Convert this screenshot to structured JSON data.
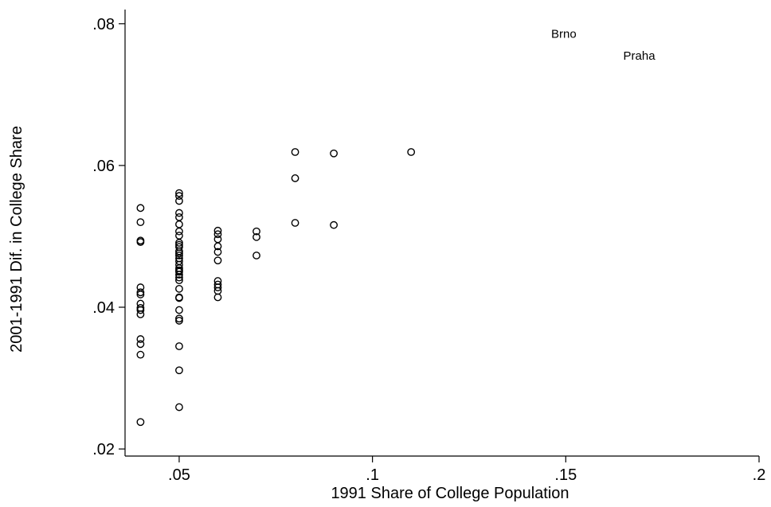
{
  "chart_data": {
    "type": "scatter",
    "title": "",
    "xlabel": "1991 Share of College Population",
    "ylabel": "2001-1991 Dif. in College Share",
    "xlim": [
      0.036,
      0.2
    ],
    "ylim": [
      0.019,
      0.082
    ],
    "xticks": [
      {
        "value": 0.05,
        "label": ".05"
      },
      {
        "value": 0.1,
        "label": ".1"
      },
      {
        "value": 0.15,
        "label": ".15"
      },
      {
        "value": 0.2,
        "label": ".2"
      }
    ],
    "yticks": [
      {
        "value": 0.02,
        "label": ".02"
      },
      {
        "value": 0.04,
        "label": ".04"
      },
      {
        "value": 0.06,
        "label": ".06"
      },
      {
        "value": 0.08,
        "label": ".08"
      }
    ],
    "grid": false,
    "legend": "none",
    "marker": "hollow-circle",
    "series": [
      {
        "x": [
          0.04,
          0.04,
          0.04,
          0.04,
          0.04,
          0.04,
          0.04,
          0.04,
          0.04,
          0.04,
          0.04,
          0.04,
          0.04,
          0.04,
          0.04,
          0.05,
          0.05,
          0.05,
          0.05,
          0.05,
          0.05,
          0.05,
          0.05,
          0.05,
          0.05,
          0.05,
          0.05,
          0.05,
          0.05,
          0.05,
          0.05,
          0.05,
          0.05,
          0.05,
          0.05,
          0.05,
          0.05,
          0.05,
          0.05,
          0.05,
          0.05,
          0.05,
          0.05,
          0.05,
          0.05,
          0.05,
          0.05,
          0.06,
          0.06,
          0.06,
          0.06,
          0.06,
          0.06,
          0.06,
          0.06,
          0.06,
          0.06,
          0.06,
          0.07,
          0.07,
          0.07,
          0.08,
          0.08,
          0.08,
          0.09,
          0.09,
          0.11
        ],
        "y": [
          0.054,
          0.052,
          0.0494,
          0.0492,
          0.0428,
          0.0421,
          0.0405,
          0.0399,
          0.0396,
          0.039,
          0.0355,
          0.0348,
          0.0333,
          0.0238,
          0.0418,
          0.0561,
          0.0557,
          0.055,
          0.0533,
          0.0527,
          0.0517,
          0.0507,
          0.0501,
          0.0491,
          0.0485,
          0.0479,
          0.0473,
          0.0469,
          0.0465,
          0.046,
          0.0455,
          0.045,
          0.0446,
          0.0442,
          0.0438,
          0.0426,
          0.0414,
          0.0396,
          0.0384,
          0.0381,
          0.0345,
          0.0311,
          0.0259,
          0.0488,
          0.0476,
          0.0452,
          0.0413,
          0.0508,
          0.0503,
          0.0496,
          0.0486,
          0.0478,
          0.0466,
          0.0437,
          0.0432,
          0.0428,
          0.0423,
          0.0414,
          0.0507,
          0.0499,
          0.0473,
          0.0619,
          0.0582,
          0.0519,
          0.0617,
          0.0516,
          0.0619
        ]
      }
    ],
    "annotations": [
      {
        "text": "Brno",
        "x": 0.1495,
        "y": 0.0786
      },
      {
        "text": "Praha",
        "x": 0.169,
        "y": 0.0755
      }
    ]
  }
}
